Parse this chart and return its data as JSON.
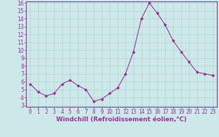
{
  "x": [
    0,
    1,
    2,
    3,
    4,
    5,
    6,
    7,
    8,
    9,
    10,
    11,
    12,
    13,
    14,
    15,
    16,
    17,
    18,
    19,
    20,
    21,
    22,
    23
  ],
  "y": [
    5.7,
    4.7,
    4.2,
    4.5,
    5.7,
    6.2,
    5.5,
    5.0,
    3.5,
    3.8,
    4.5,
    5.2,
    7.0,
    9.8,
    14.0,
    16.0,
    14.7,
    13.2,
    11.2,
    9.8,
    8.5,
    7.2,
    7.0,
    6.8
  ],
  "line_color": "#993399",
  "marker": "D",
  "marker_size": 2,
  "background_color": "#cce8e8",
  "grid_color": "#b0d4d4",
  "xlabel": "Windchill (Refroidissement éolien,°C)",
  "xlabel_color": "#993399",
  "tick_color": "#993399",
  "ylim": [
    3,
    16
  ],
  "xlim": [
    -0.5,
    23.5
  ],
  "yticks": [
    3,
    4,
    5,
    6,
    7,
    8,
    9,
    10,
    11,
    12,
    13,
    14,
    15,
    16
  ],
  "xticks": [
    0,
    1,
    2,
    3,
    4,
    5,
    6,
    7,
    8,
    9,
    10,
    11,
    12,
    13,
    14,
    15,
    16,
    17,
    18,
    19,
    20,
    21,
    22,
    23
  ],
  "spine_color": "#993399",
  "font_size": 5.5,
  "xlabel_font_size": 6.5
}
